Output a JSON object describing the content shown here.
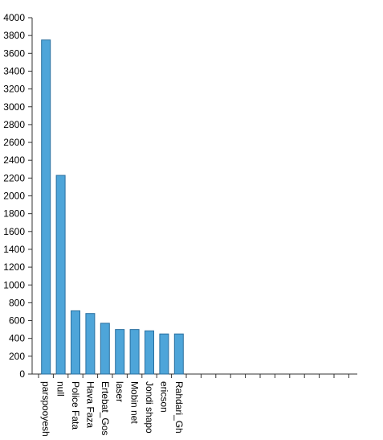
{
  "chart_data": {
    "type": "bar",
    "categories": [
      "parspooyesh",
      "null",
      "Police Fata",
      "Hava Faza",
      "Ertebat_Gos",
      "laser",
      "Mobin net",
      "Jondi shapo",
      "ericson",
      "Rahdari_Gh"
    ],
    "values": [
      3750,
      2230,
      710,
      680,
      570,
      500,
      500,
      485,
      450,
      450
    ],
    "ylim": [
      0,
      4000
    ],
    "yticks": [
      0,
      200,
      400,
      600,
      800,
      1000,
      1200,
      1400,
      1600,
      1800,
      2000,
      2200,
      2400,
      2600,
      2800,
      3000,
      3200,
      3400,
      3600,
      3800,
      4000
    ],
    "title": "",
    "xlabel": "",
    "ylabel": "",
    "bar_color": "#4ea5d9",
    "bar_edge_color": "#2a6f9f",
    "axis_color": "#333333",
    "grid": false,
    "legend": "none",
    "empty_slots_after_bars": 11
  }
}
